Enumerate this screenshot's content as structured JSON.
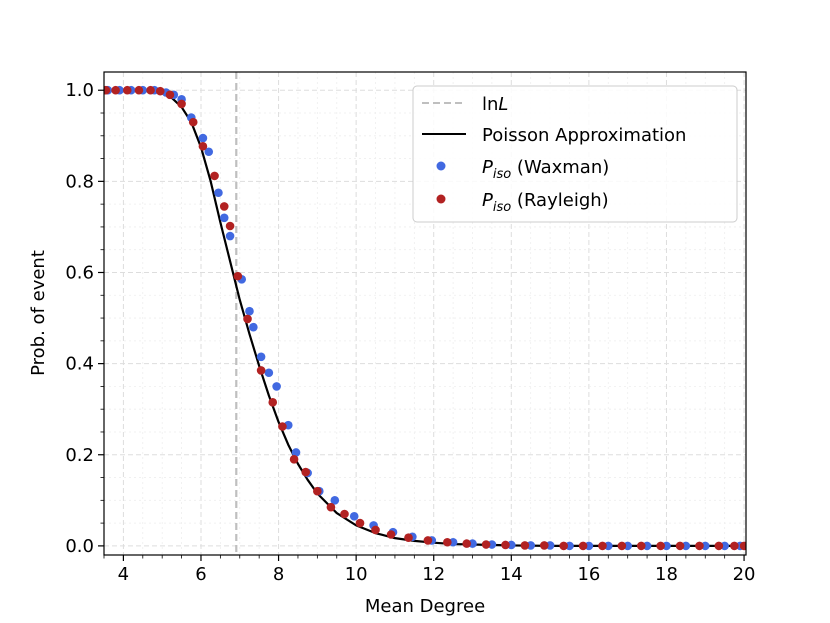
{
  "chart_data": {
    "type": "line",
    "title": "",
    "xlabel": "Mean Degree",
    "ylabel": "Prob. of event",
    "xlim": [
      3.5,
      20.05
    ],
    "ylim": [
      -0.02,
      1.04
    ],
    "xticks": [
      4,
      6,
      8,
      10,
      12,
      14,
      16,
      18,
      20
    ],
    "yticks": [
      0.0,
      0.2,
      0.4,
      0.6,
      0.8,
      1.0
    ],
    "xtick_labels": [
      "4",
      "6",
      "8",
      "10",
      "12",
      "14",
      "16",
      "18",
      "20"
    ],
    "ytick_labels": [
      "0.0",
      "0.2",
      "0.4",
      "0.6",
      "0.8",
      "1.0"
    ],
    "grid": true,
    "legend_position": "top-right",
    "vline": {
      "name": "lnL",
      "label_text": "ln",
      "label_italic": "L",
      "x": 6.91,
      "color": "#bfbfbf",
      "style": "dashed"
    },
    "series": [
      {
        "name": "Poisson Approximation",
        "kind": "line",
        "color": "#000000",
        "x": [
          3.5,
          4.0,
          4.5,
          4.75,
          5.0,
          5.25,
          5.5,
          5.75,
          6.0,
          6.25,
          6.5,
          6.75,
          7.0,
          7.25,
          7.5,
          7.75,
          8.0,
          8.25,
          8.5,
          8.75,
          9.0,
          9.5,
          10.0,
          10.5,
          11.0,
          11.5,
          12.0,
          12.5,
          13.0,
          14.0,
          15.0,
          16.0,
          17.0,
          18.0,
          19.0,
          20.0
        ],
        "y": [
          1.0,
          1.0,
          0.999,
          0.997,
          0.993,
          0.983,
          0.963,
          0.93,
          0.875,
          0.8,
          0.71,
          0.625,
          0.54,
          0.465,
          0.395,
          0.33,
          0.272,
          0.222,
          0.18,
          0.145,
          0.115,
          0.072,
          0.045,
          0.028,
          0.017,
          0.011,
          0.007,
          0.004,
          0.003,
          0.001,
          0.0,
          0.0,
          0.0,
          0.0,
          0.0,
          0.0
        ]
      },
      {
        "name": "P_iso (Waxman)",
        "label_main": "P",
        "label_sub": "iso",
        "label_suffix": " (Waxman)",
        "kind": "scatter",
        "color": "#4169e1",
        "x": [
          3.6,
          3.9,
          4.2,
          4.5,
          4.8,
          5.1,
          5.3,
          5.5,
          5.75,
          6.05,
          6.2,
          6.45,
          6.6,
          6.75,
          7.05,
          7.25,
          7.35,
          7.55,
          7.75,
          7.95,
          8.25,
          8.45,
          8.75,
          9.05,
          9.45,
          9.95,
          10.45,
          10.95,
          11.45,
          11.95,
          12.5,
          13.0,
          13.5,
          14.0,
          14.5,
          15.0,
          15.5,
          16.0,
          16.5,
          17.0,
          17.5,
          18.0,
          18.5,
          19.0,
          19.5,
          19.9
        ],
        "y": [
          1.0,
          1.0,
          1.0,
          1.0,
          1.0,
          0.995,
          0.99,
          0.98,
          0.94,
          0.895,
          0.865,
          0.775,
          0.72,
          0.68,
          0.585,
          0.515,
          0.48,
          0.415,
          0.38,
          0.35,
          0.265,
          0.205,
          0.16,
          0.12,
          0.1,
          0.065,
          0.045,
          0.03,
          0.02,
          0.012,
          0.008,
          0.005,
          0.003,
          0.002,
          0.001,
          0.001,
          0.0,
          0.0,
          0.0,
          0.0,
          0.0,
          0.0,
          0.0,
          0.0,
          0.0,
          0.0
        ]
      },
      {
        "name": "P_iso (Rayleigh)",
        "label_main": "P",
        "label_sub": "iso",
        "label_suffix": " (Rayleigh)",
        "kind": "scatter",
        "color": "#b22222",
        "x": [
          3.55,
          3.8,
          4.1,
          4.4,
          4.7,
          4.95,
          5.2,
          5.5,
          5.8,
          6.05,
          6.35,
          6.6,
          6.75,
          6.95,
          7.2,
          7.55,
          7.85,
          8.1,
          8.4,
          8.7,
          9.0,
          9.35,
          9.7,
          10.1,
          10.5,
          10.9,
          11.35,
          11.85,
          12.35,
          12.85,
          13.35,
          13.85,
          14.35,
          14.85,
          15.35,
          15.85,
          16.35,
          16.85,
          17.35,
          17.85,
          18.35,
          18.85,
          19.35,
          19.75,
          20.0
        ],
        "y": [
          1.0,
          1.0,
          1.0,
          1.0,
          1.0,
          0.998,
          0.99,
          0.97,
          0.93,
          0.877,
          0.812,
          0.745,
          0.702,
          0.592,
          0.498,
          0.385,
          0.315,
          0.262,
          0.19,
          0.162,
          0.12,
          0.085,
          0.07,
          0.05,
          0.035,
          0.025,
          0.018,
          0.012,
          0.008,
          0.005,
          0.003,
          0.002,
          0.001,
          0.001,
          0.0,
          0.0,
          0.0,
          0.0,
          0.0,
          0.0,
          0.0,
          0.0,
          0.0,
          0.0,
          0.0
        ]
      }
    ]
  }
}
